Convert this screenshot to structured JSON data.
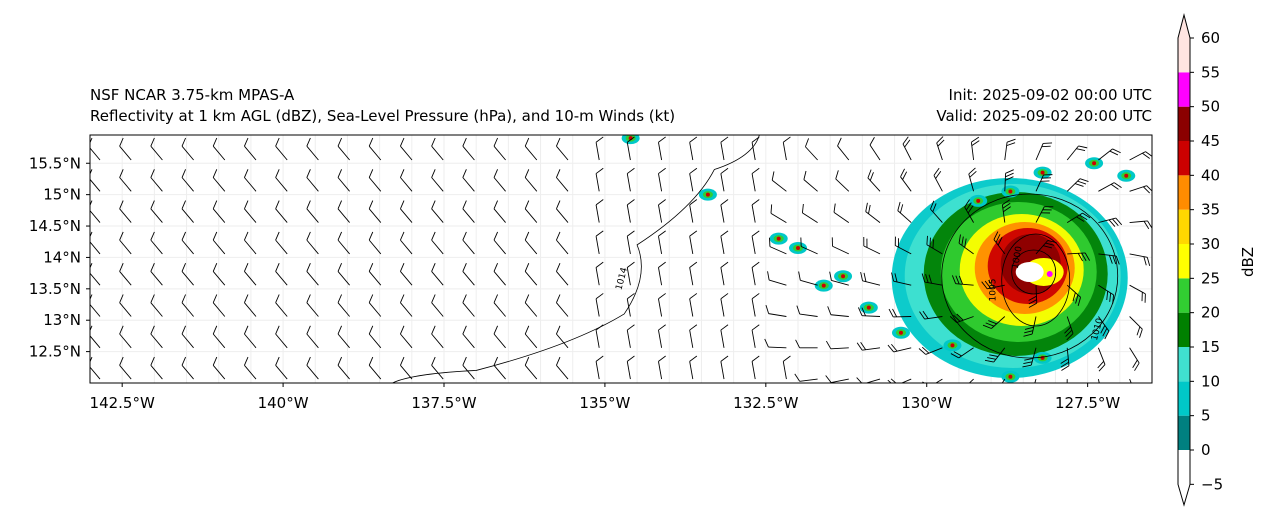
{
  "header": {
    "title_left_1": "NSF NCAR 3.75-km MPAS-A",
    "title_left_2": "Reflectivity at 1 km AGL (dBZ), Sea-Level Pressure (hPa), and 10-m Winds (kt)",
    "title_right_1": "Init: 2025-09-02 00:00 UTC",
    "title_right_2": "Valid: 2025-09-02 20:00 UTC"
  },
  "chart_data": {
    "type": "map",
    "lon_ticks": [
      {
        "v": -142.5,
        "label": "142.5°W"
      },
      {
        "v": -140,
        "label": "140°W"
      },
      {
        "v": -137.5,
        "label": "137.5°W"
      },
      {
        "v": -135,
        "label": "135°W"
      },
      {
        "v": -132.5,
        "label": "132.5°W"
      },
      {
        "v": -130,
        "label": "130°W"
      },
      {
        "v": -127.5,
        "label": "127.5°W"
      }
    ],
    "lat_ticks": [
      {
        "v": 15.5,
        "label": "15.5°N"
      },
      {
        "v": 15,
        "label": "15°N"
      },
      {
        "v": 14.5,
        "label": "14.5°N"
      },
      {
        "v": 14,
        "label": "14°N"
      },
      {
        "v": 13.5,
        "label": "13.5°N"
      },
      {
        "v": 13,
        "label": "13°N"
      },
      {
        "v": 12.5,
        "label": "12.5°N"
      }
    ],
    "extent": {
      "lon": [
        -143.0,
        -126.5
      ],
      "lat": [
        12.0,
        15.95
      ]
    },
    "storm_center": {
      "lon": -128.4,
      "lat": 13.8
    },
    "contour_labels": [
      "1014",
      "1010",
      "1005",
      "1000"
    ],
    "colorbar": {
      "label": "dBZ",
      "ticks": [
        "−5",
        "0",
        "5",
        "10",
        "15",
        "20",
        "25",
        "30",
        "35",
        "40",
        "45",
        "50",
        "55",
        "60"
      ],
      "levels": [
        -5,
        0,
        5,
        10,
        15,
        20,
        25,
        30,
        35,
        40,
        45,
        50,
        55,
        60
      ],
      "colors": [
        "#ffffff",
        "#008080",
        "#00c8c8",
        "#40e0d0",
        "#008000",
        "#32cd32",
        "#ffff00",
        "#ffd700",
        "#ff8c00",
        "#cc0000",
        "#8b0000",
        "#ff00ff",
        "#ffe4e1"
      ]
    }
  }
}
